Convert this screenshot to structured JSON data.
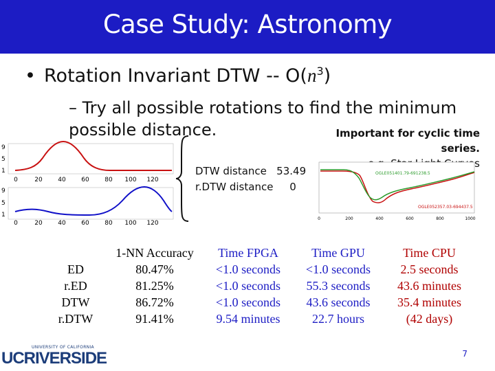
{
  "title": "Case Study: Astronomy",
  "bullet1_prefix": "Rotation Invariant DTW -- O(",
  "bullet1_var": "n",
  "bullet1_exp": "3",
  "bullet1_suffix": ")",
  "bullet2": "– Try all possible rotations to find the minimum possible distance.",
  "note_line1": "Important for cyclic time series.",
  "note_line2": "e.g. Star Light Curves",
  "dtw_line": "DTW distance   53.49",
  "rdtw_line": "r.DTW distance     0",
  "left_chart": {
    "y_ticks": [
      "9",
      "5",
      "1"
    ],
    "x_ticks": [
      "0",
      "20",
      "40",
      "60",
      "80",
      "100",
      "120"
    ]
  },
  "right_chart": {
    "label_top": "OGLE051401.79-691238.5",
    "label_bottom": "OGLE052357.03-694437.5",
    "x_ticks": [
      "0",
      "200",
      "400",
      "600",
      "800",
      "1000"
    ]
  },
  "table": {
    "headers": [
      "1-NN Accuracy",
      "Time FPGA",
      "Time GPU",
      "Time CPU"
    ],
    "rows": [
      {
        "name": "ED",
        "acc": "80.47%",
        "fpga": "<1.0 seconds",
        "gpu": "<1.0 seconds",
        "cpu": "2.5 seconds"
      },
      {
        "name": "r.ED",
        "acc": "81.25%",
        "fpga": "<1.0 seconds",
        "gpu": "55.3 seconds",
        "cpu": "43.6 minutes"
      },
      {
        "name": "DTW",
        "acc": "86.72%",
        "fpga": "<1.0 seconds",
        "gpu": "43.6 seconds",
        "cpu": "35.4 minutes"
      },
      {
        "name": "r.DTW",
        "acc": "91.41%",
        "fpga": "9.54 minutes",
        "gpu": "22.7 hours",
        "cpu": "(42 days)"
      }
    ]
  },
  "logo": {
    "university_line": "UNIVERSITY OF CALIFORNIA",
    "name": "UCRIVERSIDE"
  },
  "page_number": "7",
  "colors": {
    "title_bg": "#1c1cc4",
    "red_curve": "#c81010",
    "blue_curve": "#1010c8",
    "green_curve": "#2a9a2a"
  }
}
